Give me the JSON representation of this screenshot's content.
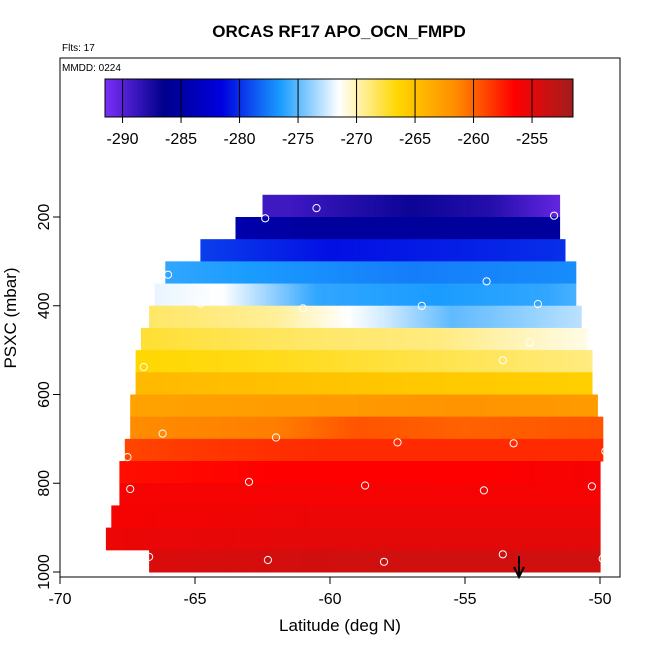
{
  "chart_data": {
    "type": "heatmap",
    "title": "ORCAS RF17 APO_OCN_FMPD",
    "flights_note": "Flts: 17",
    "date_note": "MMDD: 0224",
    "xlabel": "Latitude (deg N)",
    "ylabel": "PSXC (mbar)",
    "xlim": [
      -70,
      -49
    ],
    "ylim": [
      1000,
      100
    ],
    "y_reversed": true,
    "x_ticks": [
      -70,
      -65,
      -60,
      -55,
      -50
    ],
    "y_ticks": [
      200,
      400,
      600,
      800,
      1000
    ],
    "colorbar": {
      "range": [
        -291.5,
        -251.5
      ],
      "ticks": [
        -290,
        -285,
        -280,
        -275,
        -270,
        -265,
        -260,
        -255
      ],
      "colors": [
        "#7b2ff7",
        "#00008b",
        "#0000e0",
        "#1a9cff",
        "#ffffff",
        "#ffd700",
        "#ff8c00",
        "#ff0000",
        "#a11d1d"
      ]
    },
    "marker": {
      "x": -53,
      "y": 1000,
      "symbol": "down-arrow"
    },
    "rows": [
      {
        "p": 175,
        "x0": -62.5,
        "x1": -51.5,
        "v": -287.5,
        "grad": [
          [
            -61.5,
            -289
          ],
          [
            -57,
            -287
          ],
          [
            -54,
            -288
          ],
          [
            -51.5,
            -290.5
          ]
        ]
      },
      {
        "p": 225,
        "x0": -63.5,
        "x1": -51.5,
        "v": -285,
        "grad": [
          [
            -63.5,
            -284.5
          ],
          [
            -60,
            -285.5
          ],
          [
            -51.5,
            -285.5
          ]
        ]
      },
      {
        "p": 275,
        "x0": -64.8,
        "x1": -51.3,
        "v": -280.5,
        "grad": [
          [
            -64.8,
            -279.5
          ],
          [
            -60,
            -281
          ],
          [
            -55,
            -280.5
          ],
          [
            -51.3,
            -280
          ]
        ]
      },
      {
        "p": 325,
        "x0": -66.1,
        "x1": -50.9,
        "v": -277,
        "grad": [
          [
            -66.1,
            -276
          ],
          [
            -63,
            -276.5
          ],
          [
            -57,
            -277.5
          ],
          [
            -51,
            -277
          ]
        ]
      },
      {
        "p": 375,
        "x0": -66.5,
        "x1": -50.9,
        "v": -274,
        "grad": [
          [
            -66.5,
            -272
          ],
          [
            -64,
            -271.5
          ],
          [
            -60.5,
            -276
          ],
          [
            -56,
            -276.5
          ],
          [
            -52,
            -276
          ],
          [
            -50.9,
            -275.5
          ]
        ]
      },
      {
        "p": 425,
        "x0": -66.7,
        "x1": -50.7,
        "v": -269.5,
        "grad": [
          [
            -66.7,
            -268.5
          ],
          [
            -62,
            -269.5
          ],
          [
            -58,
            -272.5
          ],
          [
            -55.5,
            -275
          ],
          [
            -53,
            -274
          ],
          [
            -50.7,
            -273
          ]
        ]
      },
      {
        "p": 475,
        "x0": -67.0,
        "x1": -50.5,
        "v": -268,
        "grad": [
          [
            -67,
            -267.5
          ],
          [
            -61,
            -268.5
          ],
          [
            -56,
            -269
          ],
          [
            -52,
            -270.5
          ],
          [
            -50.5,
            -271
          ]
        ]
      },
      {
        "p": 525,
        "x0": -67.2,
        "x1": -50.3,
        "v": -267,
        "grad": [
          [
            -67.2,
            -266.5
          ],
          [
            -62,
            -267
          ],
          [
            -56,
            -268
          ],
          [
            -50.3,
            -269
          ]
        ]
      },
      {
        "p": 575,
        "x0": -67.2,
        "x1": -50.3,
        "v": -265,
        "grad": [
          [
            -67.2,
            -264.5
          ],
          [
            -62,
            -265
          ],
          [
            -57,
            -265.5
          ],
          [
            -50.3,
            -266
          ]
        ]
      },
      {
        "p": 625,
        "x0": -67.4,
        "x1": -50.1,
        "v": -262.5,
        "grad": [
          [
            -67.4,
            -263
          ],
          [
            -60,
            -262.5
          ],
          [
            -55,
            -262
          ],
          [
            -50.1,
            -262.5
          ]
        ]
      },
      {
        "p": 675,
        "x0": -67.4,
        "x1": -49.9,
        "v": -260.5,
        "grad": [
          [
            -67.4,
            -261.5
          ],
          [
            -62,
            -261
          ],
          [
            -59,
            -259.5
          ],
          [
            -55,
            -260
          ],
          [
            -49.9,
            -259.5
          ]
        ]
      },
      {
        "p": 725,
        "x0": -67.6,
        "x1": -49.9,
        "v": -258,
        "grad": [
          [
            -67.6,
            -259
          ],
          [
            -65,
            -258.5
          ],
          [
            -60,
            -258
          ],
          [
            -55,
            -258
          ],
          [
            -49.9,
            -258
          ]
        ]
      },
      {
        "p": 775,
        "x0": -67.8,
        "x1": -50.0,
        "v": -256.5,
        "grad": [
          [
            -67.8,
            -257
          ],
          [
            -62,
            -256.5
          ],
          [
            -55,
            -256.5
          ],
          [
            -50,
            -256
          ]
        ]
      },
      {
        "p": 825,
        "x0": -67.8,
        "x1": -50.0,
        "v": -256,
        "grad": [
          [
            -67.8,
            -256
          ],
          [
            -60,
            -256
          ],
          [
            -50,
            -256
          ]
        ]
      },
      {
        "p": 875,
        "x0": -68.1,
        "x1": -50.0,
        "v": -255.5,
        "grad": [
          [
            -68.1,
            -256
          ],
          [
            -60,
            -255.5
          ],
          [
            -50,
            -255.5
          ]
        ]
      },
      {
        "p": 925,
        "x0": -68.3,
        "x1": -50.0,
        "v": -255,
        "grad": [
          [
            -68.3,
            -255.5
          ],
          [
            -60,
            -255
          ],
          [
            -50,
            -255
          ]
        ]
      },
      {
        "p": 975,
        "x0": -66.7,
        "x1": -50.0,
        "v": -254.5,
        "grad": [
          [
            -66.7,
            -254.5
          ],
          [
            -60,
            -254
          ],
          [
            -50,
            -254
          ]
        ]
      }
    ],
    "points": [
      [
        -62.4,
        203
      ],
      [
        -60.5,
        180
      ],
      [
        -51.7,
        197
      ],
      [
        -66.0,
        330
      ],
      [
        -54.2,
        345
      ],
      [
        -64.8,
        395
      ],
      [
        -61.0,
        406
      ],
      [
        -56.6,
        400
      ],
      [
        -52.3,
        396
      ],
      [
        -52.6,
        483
      ],
      [
        -53.6,
        523
      ],
      [
        -66.9,
        538
      ],
      [
        -66.2,
        688
      ],
      [
        -62.0,
        697
      ],
      [
        -57.5,
        708
      ],
      [
        -53.2,
        710
      ],
      [
        -67.5,
        741
      ],
      [
        -49.8,
        728
      ],
      [
        -67.4,
        813
      ],
      [
        -63.0,
        797
      ],
      [
        -58.7,
        805
      ],
      [
        -54.3,
        816
      ],
      [
        -50.3,
        807
      ],
      [
        -68.4,
        960
      ],
      [
        -66.7,
        966
      ],
      [
        -62.3,
        973
      ],
      [
        -58.0,
        977
      ],
      [
        -53.6,
        960
      ],
      [
        -49.9,
        970
      ]
    ]
  }
}
